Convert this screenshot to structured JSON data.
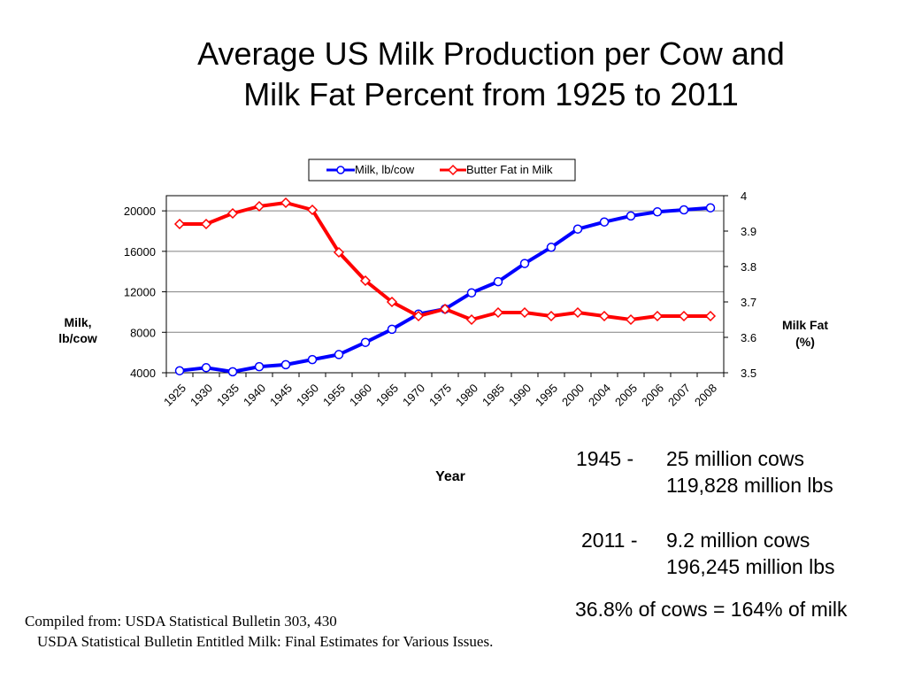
{
  "slide": {
    "title_line1": "Average US Milk Production per Cow and",
    "title_line2": "Milk Fat Percent from 1925 to 2011"
  },
  "chart_data": {
    "type": "line",
    "title": "Average US Milk Production per Cow and Milk Fat Percent from 1925 to 2011",
    "xlabel": "Year",
    "ylabel": "Milk, lb/cow",
    "ylabel_lines": [
      "Milk,",
      "lb/cow"
    ],
    "y2label": "Milk Fat (%)",
    "y2label_lines": [
      "Milk Fat",
      "(%)"
    ],
    "categories": [
      "1925",
      "1930",
      "1935",
      "1940",
      "1945",
      "1950",
      "1955",
      "1960",
      "1965",
      "1970",
      "1975",
      "1980",
      "1985",
      "1990",
      "1995",
      "2000",
      "2004",
      "2005",
      "2006",
      "2007",
      "2008"
    ],
    "ylim": [
      4000,
      21500
    ],
    "yticks": [
      "4000",
      "8000",
      "12000",
      "16000",
      "20000"
    ],
    "y2lim": [
      3.5,
      4.0
    ],
    "y2ticks": [
      "3.5",
      "3.6",
      "3.7",
      "3.8",
      "3.9",
      "4"
    ],
    "grid": true,
    "legend_position": "top",
    "series": [
      {
        "name": "Milk, lb/cow",
        "axis": "left",
        "color": "#0000ff",
        "marker": "circle",
        "values": [
          4200,
          4500,
          4100,
          4600,
          4800,
          5300,
          5800,
          7000,
          8300,
          9800,
          10300,
          11900,
          13000,
          14800,
          16400,
          18200,
          18900,
          19500,
          19900,
          20100,
          20300
        ]
      },
      {
        "name": "Butter Fat in Milk",
        "axis": "right",
        "color": "#ff0000",
        "marker": "diamond",
        "values": [
          3.92,
          3.92,
          3.95,
          3.97,
          3.98,
          3.96,
          3.84,
          3.76,
          3.7,
          3.66,
          3.68,
          3.65,
          3.67,
          3.67,
          3.66,
          3.67,
          3.66,
          3.65,
          3.66,
          3.66,
          3.66
        ]
      }
    ]
  },
  "stats": {
    "y1945": "1945 -",
    "y1945_cows": "25 million cows",
    "y1945_lbs": "119,828 million lbs",
    "y2011": "2011 -",
    "y2011_cows": "9.2 million cows",
    "y2011_lbs": "196,245 million lbs",
    "summary": "36.8% of cows = 164%  of milk"
  },
  "source": {
    "line1": "Compiled from: USDA Statistical Bulletin 303, 430",
    "line2": "USDA Statistical Bulletin Entitled Milk: Final Estimates for Various Issues."
  }
}
